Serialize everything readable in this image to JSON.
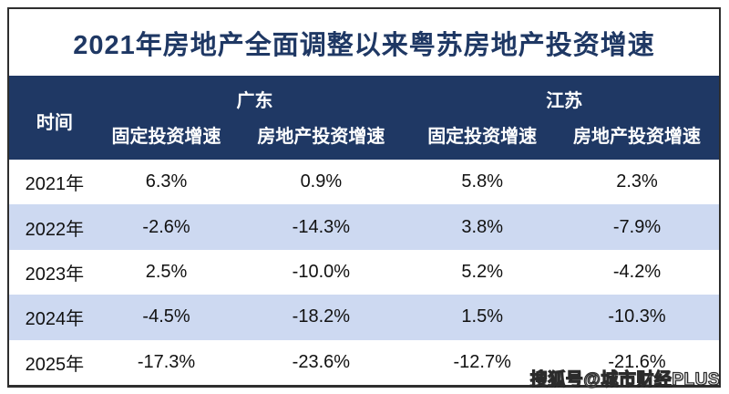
{
  "title": "2021年房地产全面调整以来粤苏房地产投资增速",
  "colors": {
    "header_bg": "#1f3864",
    "title_text": "#1f3864",
    "stripe_bg": "#cdd9f1",
    "frame_border": "#2e2e2e"
  },
  "table": {
    "time_header": "时间",
    "groups": [
      {
        "label": "广东",
        "subheaders": [
          "固定投资增速",
          "房地产投资增速"
        ]
      },
      {
        "label": "江苏",
        "subheaders": [
          "固定投资增速",
          "房地产投资增速"
        ]
      }
    ],
    "rows": [
      {
        "year": "2021年",
        "values": [
          "6.3%",
          "0.9%",
          "5.8%",
          "2.3%"
        ]
      },
      {
        "year": "2022年",
        "values": [
          "-2.6%",
          "-14.3%",
          "3.8%",
          "-7.9%"
        ]
      },
      {
        "year": "2023年",
        "values": [
          "2.5%",
          "-10.0%",
          "5.2%",
          "-4.2%"
        ]
      },
      {
        "year": "2024年",
        "values": [
          "-4.5%",
          "-18.2%",
          "1.5%",
          "-10.3%"
        ]
      },
      {
        "year": "2025年",
        "values": [
          "-17.3%",
          "-23.6%",
          "-12.7%",
          "-21.6%"
        ]
      }
    ]
  },
  "watermark": "搜狐号@城市财经PLUS",
  "chart_data": {
    "type": "table",
    "title": "2021年房地产全面调整以来粤苏房地产投资增速",
    "unit": "%",
    "categories": [
      "2021年",
      "2022年",
      "2023年",
      "2024年",
      "2025年"
    ],
    "series": [
      {
        "name": "广东-固定投资增速",
        "values": [
          6.3,
          -2.6,
          2.5,
          -4.5,
          -17.3
        ]
      },
      {
        "name": "广东-房地产投资增速",
        "values": [
          0.9,
          -14.3,
          -10.0,
          -18.2,
          -23.6
        ]
      },
      {
        "name": "江苏-固定投资增速",
        "values": [
          5.8,
          3.8,
          5.2,
          1.5,
          -12.7
        ]
      },
      {
        "name": "江苏-房地产投资增速",
        "values": [
          2.3,
          -7.9,
          -4.2,
          -10.3,
          -21.6
        ]
      }
    ]
  }
}
